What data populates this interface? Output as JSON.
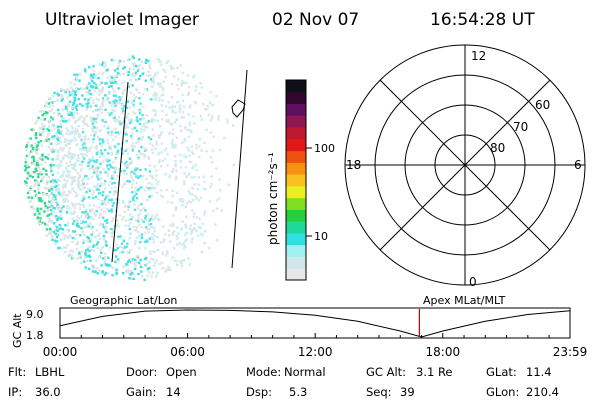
{
  "header": {
    "instrument": "Ultraviolet Imager",
    "date": "02 Nov 07",
    "time": "16:54:28 UT"
  },
  "colorbar": {
    "unit_label": "photon cm⁻²s⁻¹",
    "scale": "log",
    "ticks": [
      "100",
      "10"
    ],
    "tick_values": [
      100,
      10
    ],
    "range": [
      2.5,
      400
    ],
    "colors": [
      "#e8e8e8",
      "#cfe6ea",
      "#9ff0f0",
      "#30e0e0",
      "#20d89a",
      "#20d040",
      "#80e020",
      "#e8f020",
      "#f8c020",
      "#f89010",
      "#ee5010",
      "#e01818",
      "#c01830",
      "#901850",
      "#601060",
      "#300830",
      "#101018"
    ]
  },
  "polar_grid": {
    "mlt_labels": [
      "12",
      "6",
      "0",
      "18"
    ],
    "lat_labels": [
      "60",
      "70",
      "80"
    ],
    "label_12": "12",
    "label_6": "6",
    "label_0": "0",
    "label_18": "18",
    "label_60": "60",
    "label_70": "70",
    "label_80": "80"
  },
  "chart_data": {
    "type": "line",
    "title": "",
    "xlabel": "",
    "ylabel": "GC Alt",
    "x": [
      "00:00",
      "02:00",
      "04:00",
      "06:00",
      "08:00",
      "10:00",
      "12:00",
      "14:00",
      "16:00",
      "17:00",
      "18:00",
      "20:00",
      "22:00",
      "23:59"
    ],
    "values": [
      4.8,
      7.3,
      8.7,
      9.0,
      8.9,
      8.5,
      7.6,
      6.0,
      3.4,
      1.8,
      3.4,
      6.0,
      7.8,
      8.8
    ],
    "ylim": [
      1.8,
      9.0
    ],
    "y_ticks": [
      "9.0",
      "1.8"
    ],
    "x_ticks": [
      "00:00",
      "06:00",
      "12:00",
      "18:00",
      "23:59"
    ],
    "left_caption": "Geographic Lat/Lon",
    "right_caption": "Apex  MLat/MLT",
    "current_time": "16:54",
    "marker_color": "#cc0000"
  },
  "status": {
    "flt_label": "Flt:",
    "flt_value": "LBHL",
    "door_label": "Door:",
    "door_value": "Open",
    "mode_label": "Mode:",
    "mode_value": "Normal",
    "gcalt_label": "GC Alt:",
    "gcalt_value": "3.1 Re",
    "glat_label": "GLat:",
    "glat_value": "11.4",
    "ip_label": "IP:",
    "ip_value": "36.0",
    "gain_label": "Gain:",
    "gain_value": "14",
    "dsp_label": "Dsp:",
    "dsp_value": "5.3",
    "seq_label": "Seq:",
    "seq_value": "39",
    "glon_label": "GLon:",
    "glon_value": "210.4"
  }
}
